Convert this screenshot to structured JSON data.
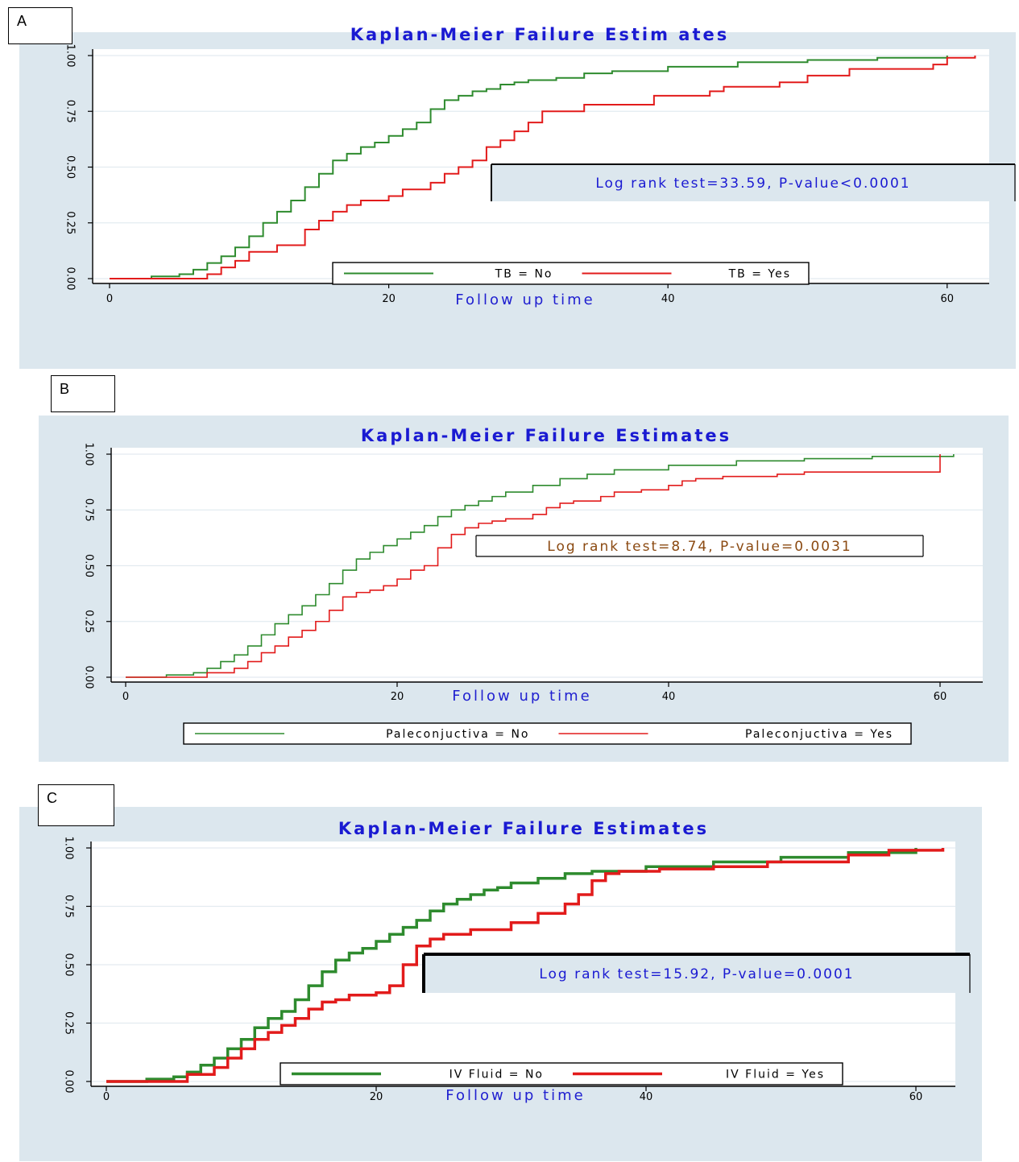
{
  "colors": {
    "no": "#2e8b2e",
    "yes": "#e21b1b",
    "panel": "#dce7ee",
    "title": "#1a1ad2"
  },
  "chart_data": [
    {
      "panel": "A",
      "type": "line",
      "title": "Kaplan-Meier Failure Estim ates",
      "xlabel": "Follow up time",
      "ylabel": "",
      "xlim": [
        0,
        63
      ],
      "ylim": [
        0,
        1
      ],
      "xticks": [
        "0",
        "20",
        "40",
        "60"
      ],
      "yticks": [
        "0.00",
        "0.25",
        "0.50",
        "0.75",
        "1.00"
      ],
      "legend": [
        "TB = No",
        "TB = Yes"
      ],
      "annotation": "Log rank test=33.59, P-value<0.0001",
      "series": [
        {
          "name": "TB = No",
          "x": [
            0,
            3,
            5,
            6,
            7,
            8,
            9,
            10,
            11,
            12,
            13,
            14,
            15,
            16,
            17,
            18,
            19,
            20,
            21,
            22,
            23,
            24,
            25,
            26,
            27,
            28,
            29,
            30,
            32,
            34,
            36,
            40,
            45,
            50,
            55,
            60
          ],
          "y": [
            0,
            0.01,
            0.02,
            0.04,
            0.07,
            0.1,
            0.14,
            0.19,
            0.25,
            0.3,
            0.35,
            0.41,
            0.47,
            0.53,
            0.56,
            0.59,
            0.61,
            0.64,
            0.67,
            0.7,
            0.76,
            0.8,
            0.82,
            0.84,
            0.85,
            0.87,
            0.88,
            0.89,
            0.9,
            0.92,
            0.93,
            0.95,
            0.97,
            0.98,
            0.99,
            1.0
          ]
        },
        {
          "name": "TB = Yes",
          "x": [
            0,
            7,
            8,
            9,
            10,
            12,
            14,
            15,
            16,
            17,
            18,
            20,
            21,
            23,
            24,
            25,
            26,
            27,
            28,
            29,
            30,
            31,
            34,
            39,
            43,
            44,
            48,
            50,
            53,
            59,
            60,
            62
          ],
          "y": [
            0,
            0.02,
            0.05,
            0.08,
            0.12,
            0.15,
            0.22,
            0.26,
            0.3,
            0.33,
            0.35,
            0.37,
            0.4,
            0.43,
            0.47,
            0.5,
            0.53,
            0.59,
            0.62,
            0.66,
            0.7,
            0.75,
            0.78,
            0.82,
            0.84,
            0.86,
            0.88,
            0.91,
            0.94,
            0.96,
            0.99,
            1.0
          ]
        }
      ]
    },
    {
      "panel": "B",
      "type": "line",
      "title": "Kaplan-Meier Failure Estimates",
      "xlabel": "Follow up time",
      "ylabel": "",
      "xlim": [
        0,
        62
      ],
      "ylim": [
        0,
        1
      ],
      "xticks": [
        "0",
        "20",
        "40",
        "60"
      ],
      "yticks": [
        "0.00",
        "0.25",
        "0.50",
        "0.75",
        "1.00"
      ],
      "legend": [
        "Paleconjuctiva = No",
        "Paleconjuctiva = Yes"
      ],
      "annotation": "Log rank test=8.74, P-value=0.0031",
      "series": [
        {
          "name": "Paleconjuctiva = No",
          "x": [
            0,
            3,
            5,
            6,
            7,
            8,
            9,
            10,
            11,
            12,
            13,
            14,
            15,
            16,
            17,
            18,
            19,
            20,
            21,
            22,
            23,
            24,
            25,
            26,
            27,
            28,
            30,
            32,
            34,
            36,
            40,
            45,
            50,
            55,
            61
          ],
          "y": [
            0,
            0.01,
            0.02,
            0.04,
            0.07,
            0.1,
            0.14,
            0.19,
            0.24,
            0.28,
            0.32,
            0.37,
            0.42,
            0.48,
            0.53,
            0.56,
            0.59,
            0.62,
            0.65,
            0.68,
            0.72,
            0.75,
            0.77,
            0.79,
            0.81,
            0.83,
            0.86,
            0.89,
            0.91,
            0.93,
            0.95,
            0.97,
            0.98,
            0.99,
            1.0
          ]
        },
        {
          "name": "Paleconjuctiva = Yes",
          "x": [
            0,
            6,
            8,
            9,
            10,
            11,
            12,
            13,
            14,
            15,
            16,
            17,
            18,
            19,
            20,
            21,
            22,
            23,
            24,
            25,
            26,
            27,
            28,
            30,
            31,
            32,
            33,
            35,
            36,
            38,
            40,
            41,
            42,
            44,
            48,
            50,
            60
          ],
          "y": [
            0,
            0.02,
            0.04,
            0.07,
            0.11,
            0.14,
            0.18,
            0.21,
            0.25,
            0.3,
            0.36,
            0.38,
            0.39,
            0.41,
            0.44,
            0.48,
            0.5,
            0.58,
            0.64,
            0.67,
            0.69,
            0.7,
            0.71,
            0.73,
            0.76,
            0.78,
            0.79,
            0.81,
            0.83,
            0.84,
            0.86,
            0.88,
            0.89,
            0.9,
            0.91,
            0.92,
            1.0
          ]
        }
      ]
    },
    {
      "panel": "C",
      "type": "line",
      "title": "Kaplan-Meier Failure Estimates",
      "xlabel": "Follow up time",
      "ylabel": "",
      "xlim": [
        0,
        63
      ],
      "ylim": [
        0,
        1
      ],
      "xticks": [
        "0",
        "20",
        "40",
        "60"
      ],
      "yticks": [
        "0.00",
        "0.25",
        "0.50",
        "0.75",
        "1.00"
      ],
      "legend": [
        "IV Fluid = No",
        "IV Fluid = Yes"
      ],
      "annotation": "Log rank test=15.92, P-value=0.0001",
      "series": [
        {
          "name": "IV Fluid = No",
          "x": [
            0,
            3,
            5,
            6,
            7,
            8,
            9,
            10,
            11,
            12,
            13,
            14,
            15,
            16,
            17,
            18,
            19,
            20,
            21,
            22,
            23,
            24,
            25,
            26,
            27,
            28,
            29,
            30,
            32,
            34,
            36,
            40,
            45,
            50,
            55,
            60
          ],
          "y": [
            0,
            0.01,
            0.02,
            0.04,
            0.07,
            0.1,
            0.14,
            0.18,
            0.23,
            0.27,
            0.3,
            0.35,
            0.41,
            0.47,
            0.52,
            0.55,
            0.57,
            0.6,
            0.63,
            0.66,
            0.69,
            0.73,
            0.76,
            0.78,
            0.8,
            0.82,
            0.83,
            0.85,
            0.87,
            0.89,
            0.9,
            0.92,
            0.94,
            0.96,
            0.98,
            1.0
          ]
        },
        {
          "name": "IV Fluid = Yes",
          "x": [
            0,
            6,
            8,
            9,
            10,
            11,
            12,
            13,
            14,
            15,
            16,
            17,
            18,
            20,
            21,
            22,
            23,
            24,
            25,
            27,
            30,
            32,
            34,
            35,
            36,
            37,
            38,
            41,
            43,
            45,
            49,
            55,
            58,
            62
          ],
          "y": [
            0,
            0.03,
            0.06,
            0.1,
            0.14,
            0.18,
            0.21,
            0.24,
            0.27,
            0.31,
            0.34,
            0.35,
            0.37,
            0.38,
            0.41,
            0.5,
            0.58,
            0.61,
            0.63,
            0.65,
            0.68,
            0.72,
            0.76,
            0.8,
            0.86,
            0.89,
            0.9,
            0.91,
            0.91,
            0.92,
            0.94,
            0.97,
            0.99,
            1.0
          ]
        }
      ]
    }
  ]
}
